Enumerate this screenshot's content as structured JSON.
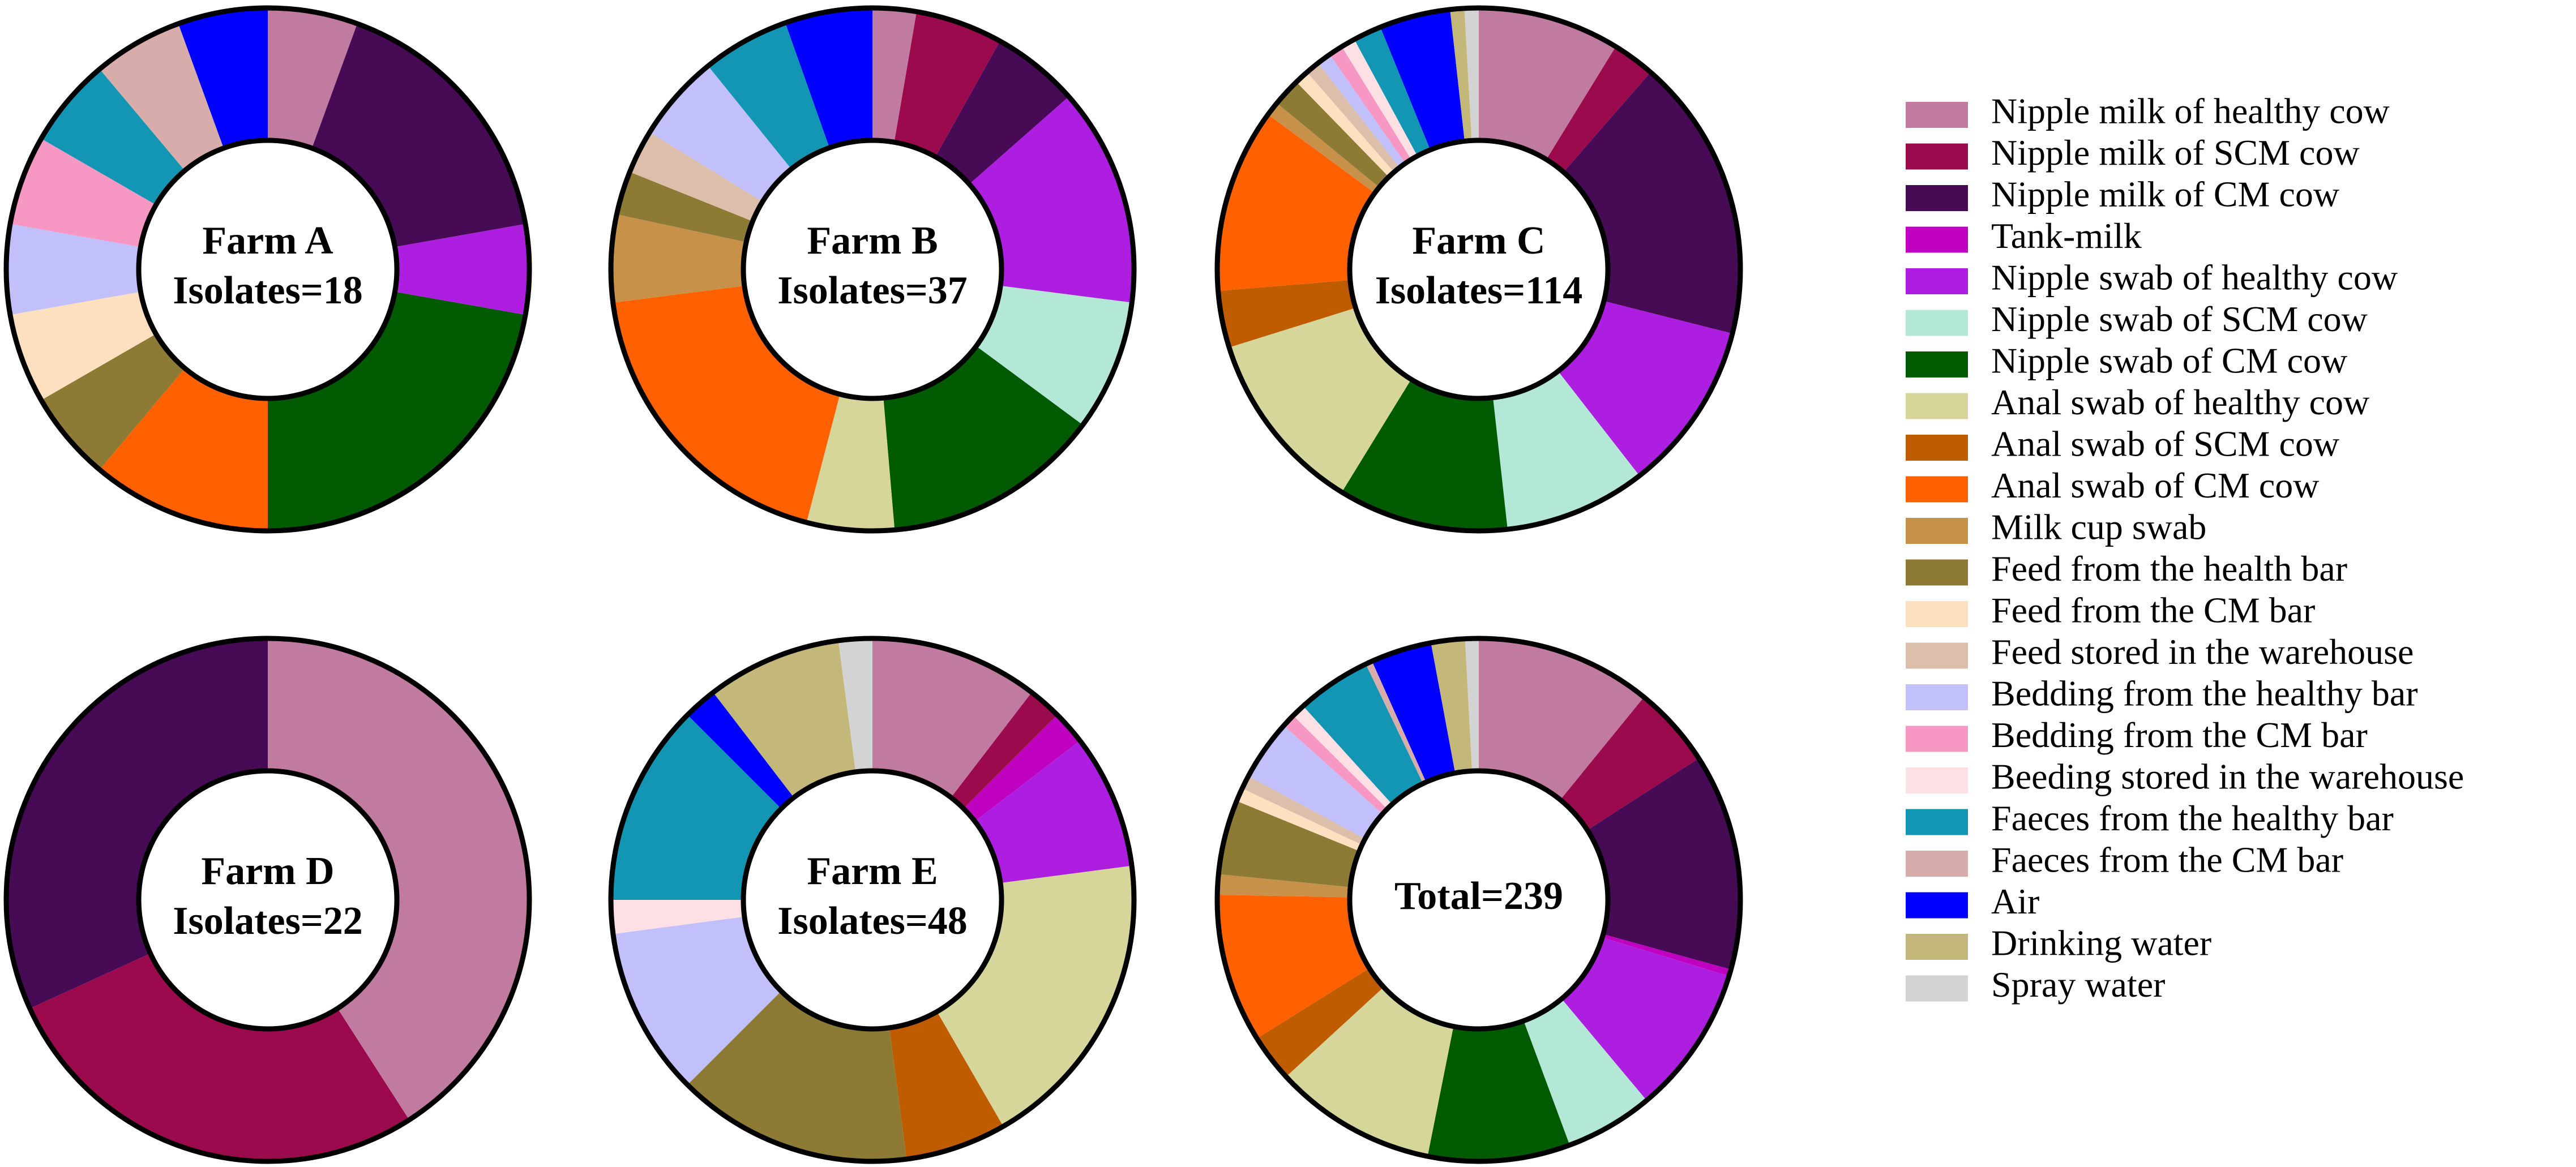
{
  "chart_data": {
    "type": "donut",
    "categories": [
      "Nipple milk of healthy cow",
      "Nipple milk of SCM cow",
      "Nipple milk of CM cow",
      "Tank-milk",
      "Nipple swab of healthy cow",
      "Nipple swab of SCM cow",
      "Nipple swab of CM cow",
      "Anal swab of healthy cow",
      "Anal swab of SCM cow",
      "Anal swab of CM cow",
      "Milk cup swab",
      "Feed from the health bar",
      "Feed from the CM bar",
      "Feed stored in the warehouse",
      "Bedding from the healthy bar",
      "Bedding from the CM bar",
      "Beeding stored in the warehouse",
      "Faeces from the healthy bar",
      "Faeces from the CM bar",
      "Air",
      "Drinking water",
      "Spray water"
    ],
    "colors": [
      "#c27ba0",
      "#9c0a4e",
      "#470a55",
      "#c000c0",
      "#ad1ee0",
      "#b3e8d6",
      "#005a00",
      "#d6d69a",
      "#c05c00",
      "#ff6000",
      "#c8914a",
      "#8c7a35",
      "#fde0bf",
      "#dbbfaa",
      "#c2c0fa",
      "#f797c4",
      "#fce0e4",
      "#1296b4",
      "#d9acac",
      "#0000ff",
      "#c4b77a",
      "#d3d3d3"
    ],
    "legend": "right",
    "series": [
      {
        "name": "Farm A",
        "subtitle": "Isolates=18",
        "values": [
          1,
          0,
          3,
          0,
          1,
          0,
          4,
          0,
          0,
          2,
          0,
          1,
          1,
          0,
          1,
          1,
          0,
          1,
          1,
          1,
          0,
          0
        ]
      },
      {
        "name": "Farm B",
        "subtitle": "Isolates=37",
        "values": [
          1,
          2,
          2,
          0,
          5,
          3,
          5,
          2,
          0,
          7,
          2,
          1,
          0,
          1,
          2,
          0,
          0,
          2,
          0,
          2,
          0,
          0
        ]
      },
      {
        "name": "Farm C",
        "subtitle": "Isolates=114",
        "values": [
          10,
          3,
          20,
          0,
          12,
          10,
          12,
          13,
          4,
          13,
          1,
          2,
          1,
          1,
          1,
          1,
          1,
          2,
          0,
          5,
          1,
          1
        ]
      },
      {
        "name": "Farm D",
        "subtitle": "Isolates=22",
        "values": [
          9,
          6,
          7,
          0,
          0,
          0,
          0,
          0,
          0,
          0,
          0,
          0,
          0,
          0,
          0,
          0,
          0,
          0,
          0,
          0,
          0,
          0
        ]
      },
      {
        "name": "Farm E",
        "subtitle": "Isolates=48",
        "values": [
          5,
          1,
          0,
          1,
          4,
          0,
          0,
          9,
          3,
          0,
          0,
          7,
          0,
          0,
          5,
          0,
          1,
          6,
          0,
          1,
          4,
          1
        ]
      },
      {
        "name": "Total=239",
        "values": [
          26,
          12,
          32,
          1,
          22,
          13,
          21,
          24,
          7,
          22,
          3,
          11,
          2,
          2,
          9,
          2,
          2,
          11,
          1,
          9,
          5,
          2
        ]
      }
    ]
  }
}
